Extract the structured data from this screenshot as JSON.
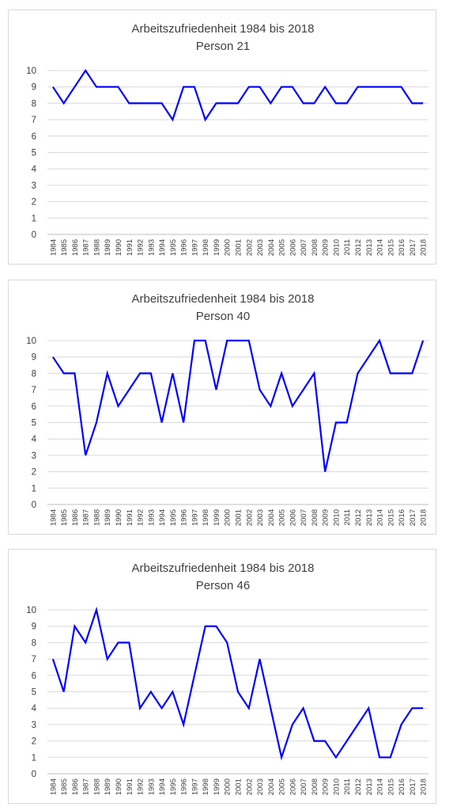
{
  "chart_data": [
    {
      "type": "line",
      "title": "Arbeitszufriedenheit  1984 bis 2018",
      "subtitle": "Person 21",
      "x": [
        "1984",
        "1985",
        "1986",
        "1987",
        "1988",
        "1989",
        "1990",
        "1991",
        "1992",
        "1993",
        "1994",
        "1995",
        "1996",
        "1997",
        "1998",
        "1999",
        "2000",
        "2001",
        "2002",
        "2003",
        "2004",
        "2005",
        "2006",
        "2007",
        "2008",
        "2009",
        "2010",
        "2011",
        "2012",
        "2013",
        "2014",
        "2015",
        "2016",
        "2017",
        "2018"
      ],
      "series": [
        {
          "values": [
            9,
            8,
            9,
            10,
            9,
            9,
            9,
            8,
            8,
            8,
            8,
            7,
            9,
            9,
            7,
            8,
            8,
            8,
            9,
            9,
            8,
            9,
            9,
            8,
            8,
            9,
            8,
            8,
            9,
            9,
            9,
            9,
            9,
            8,
            8
          ]
        }
      ],
      "yticks": [
        "0",
        "1",
        "2",
        "3",
        "4",
        "5",
        "6",
        "7",
        "8",
        "9",
        "10"
      ],
      "ylim": [
        0,
        10
      ],
      "grid": true,
      "legend": "none",
      "line_color": "#0000ff"
    },
    {
      "type": "line",
      "title": "Arbeitszufriedenheit  1984 bis 2018",
      "subtitle": "Person 40",
      "x": [
        "1984",
        "1985",
        "1986",
        "1987",
        "1988",
        "1989",
        "1990",
        "1991",
        "1992",
        "1993",
        "1994",
        "1995",
        "1996",
        "1997",
        "1998",
        "1999",
        "2000",
        "2001",
        "2002",
        "2003",
        "2004",
        "2005",
        "2006",
        "2007",
        "2008",
        "2009",
        "2010",
        "2011",
        "2012",
        "2013",
        "2014",
        "2015",
        "2016",
        "2017",
        "2018"
      ],
      "series": [
        {
          "values": [
            9,
            8,
            8,
            3,
            5,
            8,
            6,
            7,
            8,
            8,
            5,
            8,
            5,
            10,
            10,
            7,
            10,
            10,
            10,
            7,
            6,
            8,
            6,
            7,
            8,
            2,
            5,
            5,
            8,
            9,
            10,
            8,
            8,
            8,
            10
          ]
        }
      ],
      "yticks": [
        "0",
        "1",
        "2",
        "3",
        "4",
        "5",
        "6",
        "7",
        "8",
        "9",
        "10"
      ],
      "ylim": [
        0,
        10
      ],
      "grid": true,
      "legend": "none",
      "line_color": "#0000ff"
    },
    {
      "type": "line",
      "title": "Arbeitszufriedenheit  1984 bis 2018",
      "subtitle": "Person 46",
      "x": [
        "1984",
        "1985",
        "1986",
        "1987",
        "1988",
        "1989",
        "1990",
        "1991",
        "1992",
        "1993",
        "1994",
        "1995",
        "1996",
        "1997",
        "1998",
        "1999",
        "2000",
        "2001",
        "2002",
        "2003",
        "2004",
        "2005",
        "2006",
        "2007",
        "2008",
        "2009",
        "2010",
        "2011",
        "2012",
        "2013",
        "2014",
        "2015",
        "2016",
        "2017",
        "2018"
      ],
      "series": [
        {
          "values": [
            7,
            5,
            9,
            8,
            10,
            7,
            8,
            8,
            4,
            5,
            4,
            5,
            3,
            6,
            9,
            9,
            8,
            5,
            4,
            7,
            4,
            1,
            3,
            4,
            2,
            2,
            1,
            2,
            3,
            4,
            1,
            1,
            3,
            4,
            4
          ]
        }
      ],
      "yticks": [
        "0",
        "1",
        "2",
        "3",
        "4",
        "5",
        "6",
        "7",
        "8",
        "9",
        "10"
      ],
      "ylim": [
        0,
        10
      ],
      "grid": true,
      "legend": "none",
      "line_color": "#0000ff"
    }
  ]
}
